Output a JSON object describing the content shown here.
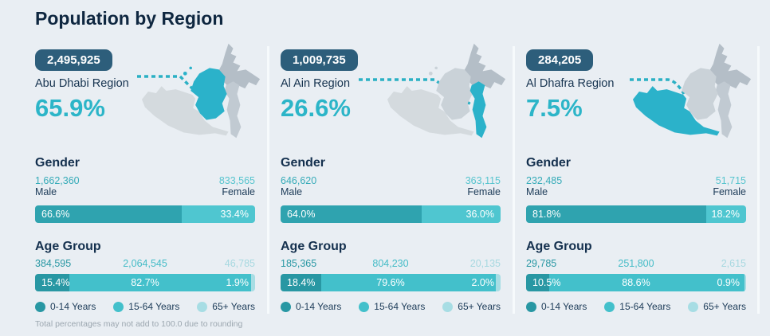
{
  "title": "Population by Region",
  "footnote": "Total percentages may not add to 100.0 due to rounding",
  "labels": {
    "gender": "Gender",
    "age": "Age Group",
    "male": "Male",
    "female": "Female"
  },
  "legend": [
    "0-14 Years",
    "15-64 Years",
    "65+ Years"
  ],
  "colors": {
    "background": "#e9eef3",
    "navy_text": "#14304e",
    "teal_accent": "#2cb5c8",
    "badge_bg": "#2d5e7b",
    "bar_male": "#2fa3af",
    "bar_female": "#4fc6d0",
    "age_0_14": "#2897a3",
    "age_15_64": "#43c0cb",
    "age_65_plus": "#a7dde4",
    "map_highlight": "#2bb2ca",
    "map_gray": "#c1cad2",
    "footnote_gray": "#9ca7b0"
  },
  "columns": [
    {
      "population": "2,495,925",
      "region": "Abu Dhabi Region",
      "share_pct": "65.9%",
      "map_highlight_region": "abu-dhabi",
      "gender": {
        "male_value": "1,662,360",
        "male_pct": "66.6%",
        "male_pct_num": 66.6,
        "female_value": "833,565",
        "female_pct": "33.4%",
        "female_pct_num": 33.4
      },
      "age": {
        "groups": [
          {
            "value": "384,595",
            "pct": "15.4%",
            "pct_num": 15.4
          },
          {
            "value": "2,064,545",
            "pct": "82.7%",
            "pct_num": 82.7
          },
          {
            "value": "46,785",
            "pct": "1.9%",
            "pct_num": 1.9
          }
        ]
      }
    },
    {
      "population": "1,009,735",
      "region": "Al Ain Region",
      "share_pct": "26.6%",
      "map_highlight_region": "al-ain",
      "gender": {
        "male_value": "646,620",
        "male_pct": "64.0%",
        "male_pct_num": 64.0,
        "female_value": "363,115",
        "female_pct": "36.0%",
        "female_pct_num": 36.0
      },
      "age": {
        "groups": [
          {
            "value": "185,365",
            "pct": "18.4%",
            "pct_num": 18.4
          },
          {
            "value": "804,230",
            "pct": "79.6%",
            "pct_num": 79.6
          },
          {
            "value": "20,135",
            "pct": "2.0%",
            "pct_num": 2.0
          }
        ]
      }
    },
    {
      "population": "284,205",
      "region": "Al Dhafra Region",
      "share_pct": "7.5%",
      "map_highlight_region": "al-dhafra",
      "gender": {
        "male_value": "232,485",
        "male_pct": "81.8%",
        "male_pct_num": 81.8,
        "female_value": "51,715",
        "female_pct": "18.2%",
        "female_pct_num": 18.2
      },
      "age": {
        "groups": [
          {
            "value": "29,785",
            "pct": "10.5%",
            "pct_num": 10.5
          },
          {
            "value": "251,800",
            "pct": "88.6%",
            "pct_num": 88.6
          },
          {
            "value": "2,615",
            "pct": "0.9%",
            "pct_num": 0.9
          }
        ]
      }
    }
  ],
  "chart_data": [
    {
      "type": "bar",
      "subtype": "region-share",
      "title": "Population by Region",
      "categories": [
        "Abu Dhabi Region",
        "Al Ain Region",
        "Al Dhafra Region"
      ],
      "values": [
        65.9,
        26.6,
        7.5
      ],
      "totals": [
        2495925,
        1009735,
        284205
      ],
      "unit": "percent of total population"
    },
    {
      "type": "bar",
      "subtype": "stacked-100",
      "title": "Gender",
      "categories": [
        "Abu Dhabi Region",
        "Al Ain Region",
        "Al Dhafra Region"
      ],
      "series": [
        {
          "name": "Male",
          "values": [
            66.6,
            64.0,
            81.8
          ],
          "counts": [
            1662360,
            646620,
            232485
          ]
        },
        {
          "name": "Female",
          "values": [
            33.4,
            36.0,
            18.2
          ],
          "counts": [
            833565,
            363115,
            51715
          ]
        }
      ]
    },
    {
      "type": "bar",
      "subtype": "stacked-100",
      "title": "Age Group",
      "categories": [
        "Abu Dhabi Region",
        "Al Ain Region",
        "Al Dhafra Region"
      ],
      "series": [
        {
          "name": "0-14 Years",
          "values": [
            15.4,
            18.4,
            10.5
          ],
          "counts": [
            384595,
            185365,
            29785
          ]
        },
        {
          "name": "15-64 Years",
          "values": [
            82.7,
            79.6,
            88.6
          ],
          "counts": [
            2064545,
            804230,
            251800
          ]
        },
        {
          "name": "65+ Years",
          "values": [
            1.9,
            2.0,
            0.9
          ],
          "counts": [
            46785,
            20135,
            2615
          ]
        }
      ],
      "legend_position": "bottom"
    }
  ]
}
